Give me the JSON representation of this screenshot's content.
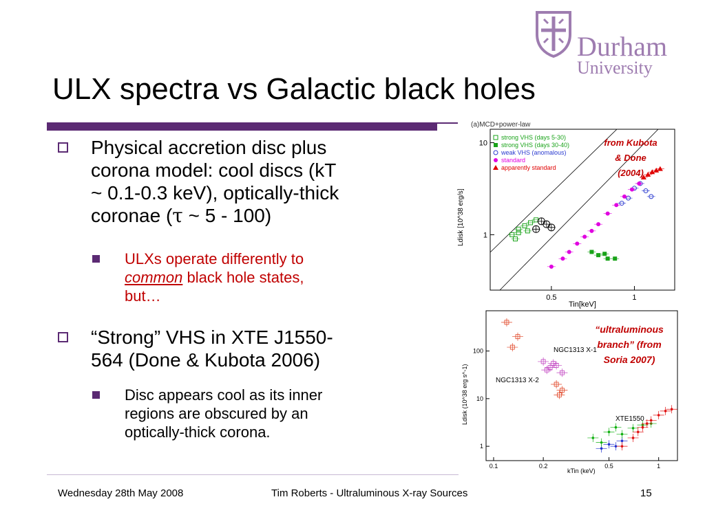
{
  "header": {
    "title": "ULX spectra vs Galactic black holes",
    "logo": {
      "word1": "Durham",
      "word2": "University"
    }
  },
  "bullets": {
    "b1": {
      "lines": [
        "Physical accretion disc plus",
        "corona model: cool discs (kT",
        "~ 0.1-0.3 keV), optically-thick"
      ],
      "last_pre": "coronae (",
      "tau": "τ",
      "last_post": " ~ 5 - 100)"
    },
    "b1_sub": {
      "line1": "ULXs operate differently to",
      "line2_em": "common",
      "line2_rest": " black hole states,",
      "line3": "but…"
    },
    "b2": {
      "lines": [
        "“Strong” VHS in XTE J1550-",
        "564 (Done & Kubota 2006)"
      ]
    },
    "b2_sub": {
      "lines": [
        "Disc appears cool as its inner",
        "regions are obscured by an",
        "optically-thick corona."
      ]
    }
  },
  "chart_data": [
    {
      "type": "scatter",
      "title": "(a)MCD+power-law",
      "xlabel": "Tin[keV]",
      "ylabel": "Ldisk [10^38 erg/s]",
      "xscale": "log",
      "yscale": "log",
      "xticks": [
        "0.5",
        "1"
      ],
      "yticks": [
        "10",
        "1"
      ],
      "annotation": [
        "from Kubota",
        "& Done",
        "(2004)"
      ],
      "legend": [
        {
          "name": "strong VHS (days 5-30)",
          "marker": "open-square",
          "color": "#1aa31a"
        },
        {
          "name": "strong VHS (days 30-40)",
          "marker": "filled-square",
          "color": "#1aa31a"
        },
        {
          "name": "weak VHS (anomalous)",
          "marker": "open-circle",
          "color": "#2b3bd0"
        },
        {
          "name": "standard",
          "marker": "filled-circle",
          "color": "#e000e0"
        },
        {
          "name": "apparently standard",
          "marker": "filled-triangle",
          "color": "#e00000"
        }
      ],
      "series": [
        {
          "name": "strong VHS (days 5-30)",
          "points": [
            [
              0.36,
              1.0
            ],
            [
              0.38,
              1.15
            ],
            [
              0.4,
              1.25
            ],
            [
              0.42,
              1.35
            ],
            [
              0.44,
              1.45
            ],
            [
              0.37,
              0.9
            ],
            [
              0.41,
              1.1
            ],
            [
              0.38,
              1.05
            ]
          ]
        },
        {
          "name": "strong VHS (days 30-40)",
          "points": [
            [
              0.7,
              0.65
            ],
            [
              0.74,
              0.6
            ],
            [
              0.8,
              0.55
            ],
            [
              0.85,
              0.55
            ],
            [
              0.78,
              0.62
            ]
          ]
        },
        {
          "name": "weak VHS (anomalous)",
          "points": [
            [
              0.95,
              2.5
            ],
            [
              1.0,
              3.2
            ],
            [
              1.05,
              3.6
            ],
            [
              1.1,
              3.0
            ],
            [
              1.15,
              2.6
            ],
            [
              0.9,
              2.2
            ]
          ]
        },
        {
          "name": "standard",
          "points": [
            [
              0.5,
              0.45
            ],
            [
              0.55,
              0.55
            ],
            [
              0.58,
              0.65
            ],
            [
              0.62,
              0.8
            ],
            [
              0.66,
              0.95
            ],
            [
              0.7,
              1.1
            ],
            [
              0.74,
              1.3
            ],
            [
              0.8,
              1.7
            ],
            [
              0.86,
              2.1
            ],
            [
              0.92,
              2.6
            ],
            [
              0.98,
              3.1
            ],
            [
              1.04,
              3.6
            ]
          ]
        },
        {
          "name": "apparently standard",
          "points": [
            [
              1.08,
              4.2
            ],
            [
              1.12,
              4.5
            ],
            [
              1.16,
              4.8
            ],
            [
              1.2,
              5.0
            ],
            [
              1.24,
              5.2
            ]
          ]
        },
        {
          "name": "strong VHS crossed circles",
          "points": [
            [
              0.46,
              1.4
            ],
            [
              0.48,
              1.3
            ],
            [
              0.5,
              1.2
            ],
            [
              0.44,
              1.15
            ]
          ]
        }
      ]
    },
    {
      "type": "scatter",
      "title": "",
      "xlabel": "kTin (keV)",
      "ylabel": "Ldisk (10^38 erg s^-1)",
      "xscale": "log",
      "yscale": "log",
      "xticks": [
        "0.1",
        "0.2",
        "0.5",
        "1"
      ],
      "yticks": [
        "100",
        "10",
        "1"
      ],
      "labels": [
        "NGC1313 X-1",
        "NGC1313 X-2",
        "XTE1550"
      ],
      "annotation": [
        "“ultraluminous",
        "branch” (from",
        "Soria 2007)"
      ],
      "series": [
        {
          "name": "NGC1313 X-1",
          "color": "#c040c0",
          "points": [
            [
              0.2,
              60
            ],
            [
              0.22,
              45
            ],
            [
              0.24,
              50
            ],
            [
              0.21,
              40
            ],
            [
              0.26,
              35
            ],
            [
              0.23,
              55
            ]
          ]
        },
        {
          "name": "NGC1313 X-2",
          "color": "#e04020",
          "points": [
            [
              0.12,
              400
            ],
            [
              0.14,
              200
            ],
            [
              0.13,
              120
            ],
            [
              0.24,
              20
            ],
            [
              0.26,
              15
            ],
            [
              0.25,
              12
            ]
          ]
        },
        {
          "name": "XTE1550 blue",
          "color": "#2030d0",
          "points": [
            [
              0.45,
              0.9
            ],
            [
              0.5,
              1.1
            ],
            [
              0.55,
              1.0
            ],
            [
              0.6,
              1.3
            ]
          ]
        },
        {
          "name": "XTE1550 green",
          "color": "#10b010",
          "points": [
            [
              0.4,
              1.5
            ],
            [
              0.5,
              2.0
            ],
            [
              0.6,
              1.8
            ],
            [
              0.7,
              2.4
            ],
            [
              0.8,
              2.8
            ],
            [
              0.9,
              3.0
            ],
            [
              0.45,
              1.2
            ],
            [
              0.55,
              2.5
            ]
          ]
        },
        {
          "name": "XTE1550 red",
          "color": "#e01010",
          "points": [
            [
              0.6,
              1.0
            ],
            [
              0.7,
              1.5
            ],
            [
              0.8,
              2.5
            ],
            [
              0.9,
              3.5
            ],
            [
              1.0,
              4.5
            ],
            [
              1.1,
              5.5
            ],
            [
              1.2,
              6.0
            ],
            [
              0.75,
              2.0
            ],
            [
              0.85,
              3.0
            ]
          ]
        }
      ]
    }
  ],
  "footer": {
    "date": "Wednesday 28th May 2008",
    "center": "Tim Roberts - Ultraluminous X-ray Sources",
    "page": "15"
  }
}
